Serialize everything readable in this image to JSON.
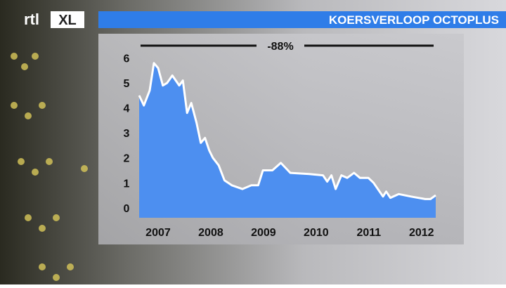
{
  "logo": {
    "text": "rtl",
    "badge": "XL"
  },
  "chart_data": {
    "type": "area",
    "title": "KOERSVERLOOP OCTOPLUS",
    "annotation": "-88%",
    "x": [
      2006.64,
      2006.73,
      2006.84,
      2006.92,
      2007.0,
      2007.09,
      2007.17,
      2007.27,
      2007.4,
      2007.47,
      2007.55,
      2007.63,
      2007.73,
      2007.81,
      2007.89,
      2007.97,
      2008.04,
      2008.15,
      2008.26,
      2008.4,
      2008.6,
      2008.77,
      2008.9,
      2008.99,
      2009.17,
      2009.33,
      2009.51,
      2009.87,
      2010.13,
      2010.21,
      2010.29,
      2010.37,
      2010.48,
      2010.59,
      2010.72,
      2010.83,
      2010.99,
      2011.09,
      2011.27,
      2011.33,
      2011.41,
      2011.57,
      2011.8,
      2012.07,
      2012.17,
      2012.27
    ],
    "values": [
      4.5,
      4.1,
      4.7,
      5.8,
      5.6,
      4.9,
      5.0,
      5.3,
      4.9,
      5.1,
      3.8,
      4.2,
      3.4,
      2.6,
      2.8,
      2.3,
      2.0,
      1.7,
      1.1,
      0.9,
      0.75,
      0.9,
      0.9,
      1.5,
      1.5,
      1.8,
      1.4,
      1.35,
      1.3,
      1.05,
      1.3,
      0.75,
      1.3,
      1.2,
      1.4,
      1.2,
      1.2,
      1.0,
      0.45,
      0.65,
      0.4,
      0.55,
      0.45,
      0.35,
      0.35,
      0.5
    ],
    "color": "#4d8ff0",
    "line_color": "#ffffff",
    "xlim": [
      2006.64,
      2012.27
    ],
    "xticks": [
      2007,
      2008,
      2009,
      2010,
      2011,
      2012
    ],
    "ylim": [
      -0.4,
      6.3
    ],
    "yticks": [
      0,
      1,
      2,
      3,
      4,
      5,
      6
    ]
  }
}
